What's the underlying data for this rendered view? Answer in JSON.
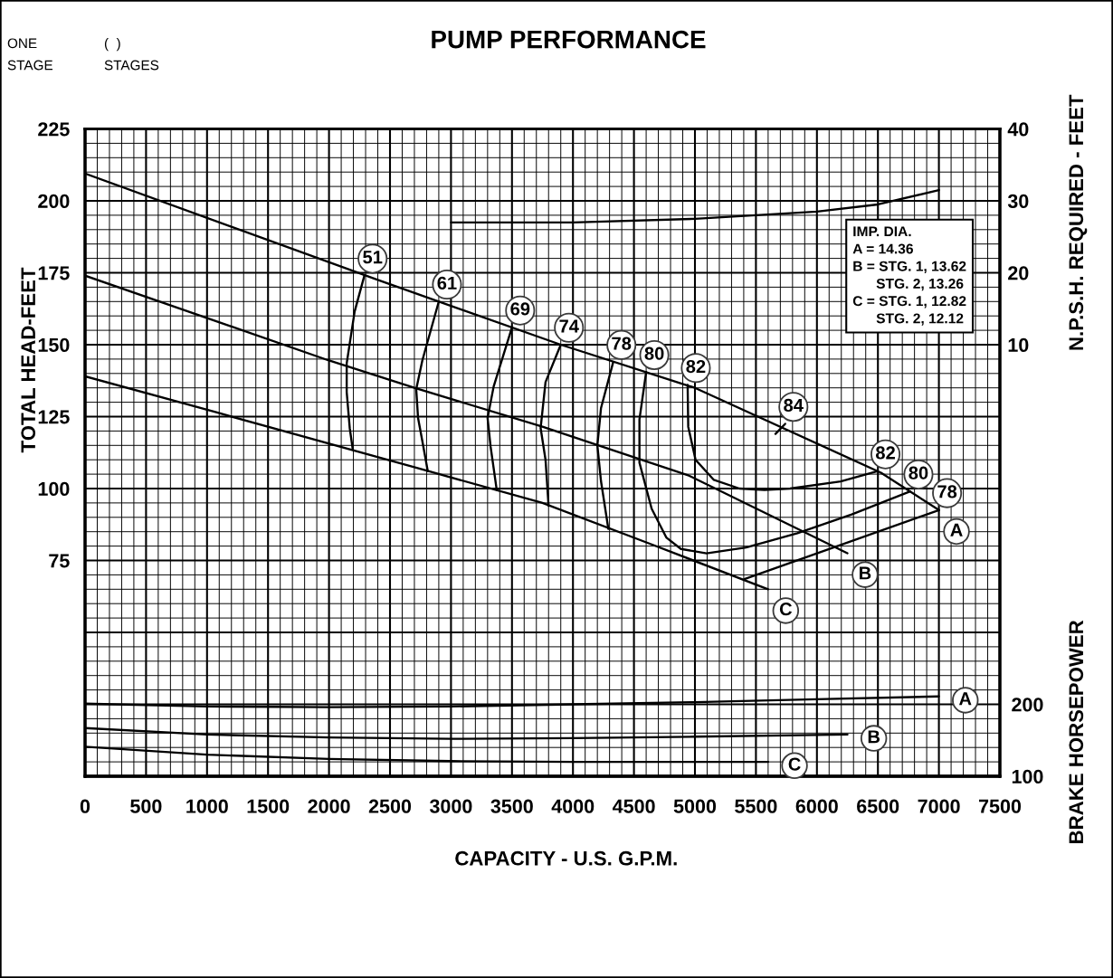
{
  "chart_data": {
    "type": "line",
    "title": "PUMP PERFORMANCE",
    "xlabel": "CAPACITY - U.S. G.P.M.",
    "ylabel": "TOTAL HEAD-FEET",
    "y2label": "N.P.S.H. REQUIRED - FEET",
    "y3label": "BRAKE HORSEPOWER",
    "annotations": [
      "ONE\nSTAGE",
      "(  )\nSTAGES",
      "IMP. DIA.\nA = 14.36\nB = STG. 1, 13.62\n      STG. 2, 13.26\nC = STG. 1, 12.82\n      STG. 2, 12.12"
    ],
    "xlim": [
      0,
      7500
    ],
    "xticks": [
      0,
      {
        "value": 100,
        "label": null
      },
      {
        "value": 200,
        "label": null
      },
      {
        "value": 300,
        "label": null
      },
      {
        "value": 400,
        "label": null
      },
      500,
      {
        "value": 600,
        "label": null
      },
      {
        "value": 700,
        "label": null
      },
      {
        "value": 800,
        "label": null
      },
      {
        "value": 900,
        "label": null
      },
      1000,
      {
        "value": 1100,
        "label": null
      },
      {
        "value": 1200,
        "label": null
      },
      {
        "value": 1300,
        "label": null
      },
      {
        "value": 1400,
        "label": null
      },
      1500,
      {
        "value": 1600,
        "label": null
      },
      {
        "value": 1700,
        "label": null
      },
      {
        "value": 1800,
        "label": null
      },
      {
        "value": 1900,
        "label": null
      },
      2000,
      {
        "value": 2100,
        "label": null
      },
      {
        "value": 2200,
        "label": null
      },
      {
        "value": 2300,
        "label": null
      },
      {
        "value": 2400,
        "label": null
      },
      2500,
      {
        "value": 2600,
        "label": null
      },
      {
        "value": 2700,
        "label": null
      },
      {
        "value": 2800,
        "label": null
      },
      {
        "value": 2900,
        "label": null
      },
      3000,
      {
        "value": 3100,
        "label": null
      },
      {
        "value": 3200,
        "label": null
      },
      {
        "value": 3300,
        "label": null
      },
      {
        "value": 3400,
        "label": null
      },
      3500,
      {
        "value": 3600,
        "label": null
      },
      {
        "value": 3700,
        "label": null
      },
      {
        "value": 3800,
        "label": null
      },
      {
        "value": 3900,
        "label": null
      },
      4000,
      {
        "value": 4100,
        "label": null
      },
      {
        "value": 4200,
        "label": null
      },
      {
        "value": 4300,
        "label": null
      },
      {
        "value": 4400,
        "label": null
      },
      4500,
      {
        "value": 4600,
        "label": null
      },
      {
        "value": 4700,
        "label": null
      },
      {
        "value": 4800,
        "label": null
      },
      {
        "value": 4900,
        "label": null
      },
      5000,
      {
        "value": 5100,
        "label": null
      },
      {
        "value": 5200,
        "label": null
      },
      {
        "value": 5300,
        "label": null
      },
      {
        "value": 5400,
        "label": null
      },
      5500,
      {
        "value": 5600,
        "label": null
      },
      {
        "value": 5700,
        "label": null
      },
      {
        "value": 5800,
        "label": null
      },
      {
        "value": 5900,
        "label": null
      },
      6000,
      {
        "value": 6100,
        "label": null
      },
      {
        "value": 6200,
        "label": null
      },
      {
        "value": 6300,
        "label": null
      },
      {
        "value": 6400,
        "label": null
      },
      6500,
      {
        "value": 6600,
        "label": null
      },
      {
        "value": 6700,
        "label": null
      },
      {
        "value": 6800,
        "label": null
      },
      {
        "value": 6900,
        "label": null
      },
      7000,
      {
        "value": 7100,
        "label": null
      },
      {
        "value": 7200,
        "label": null
      },
      {
        "value": 7300,
        "label": null
      },
      {
        "value": 7400,
        "label": null
      },
      7500
    ],
    "ylim": [
      0,
      225
    ],
    "yticks": [
      {
        "value": 0,
        "label": null
      },
      {
        "value": 5,
        "label": null
      },
      {
        "value": 10,
        "label": null
      },
      {
        "value": 15,
        "label": null
      },
      {
        "value": 20,
        "label": null
      },
      {
        "value": 25,
        "label": null
      },
      {
        "value": 30,
        "label": null
      },
      {
        "value": 35,
        "label": null
      },
      {
        "value": 40,
        "label": null
      },
      {
        "value": 45,
        "label": null
      },
      {
        "value": 50,
        "label": null
      },
      {
        "value": 55,
        "label": null
      },
      {
        "value": 60,
        "label": null
      },
      {
        "value": 65,
        "label": null
      },
      {
        "value": 70,
        "label": null
      },
      75,
      {
        "value": 80,
        "label": null
      },
      {
        "value": 85,
        "label": null
      },
      {
        "value": 90,
        "label": null
      },
      {
        "value": 95,
        "label": null
      },
      100,
      {
        "value": 105,
        "label": null
      },
      {
        "value": 110,
        "label": null
      },
      {
        "value": 115,
        "label": null
      },
      {
        "value": 120,
        "label": null
      },
      125,
      {
        "value": 130,
        "label": null
      },
      {
        "value": 135,
        "label": null
      },
      {
        "value": 140,
        "label": null
      },
      {
        "value": 145,
        "label": null
      },
      150,
      {
        "value": 155,
        "label": null
      },
      {
        "value": 160,
        "label": null
      },
      {
        "value": 165,
        "label": null
      },
      {
        "value": 170,
        "label": null
      },
      175,
      {
        "value": 180,
        "label": null
      },
      {
        "value": 185,
        "label": null
      },
      {
        "value": 190,
        "label": null
      },
      {
        "value": 195,
        "label": null
      },
      200,
      {
        "value": 205,
        "label": null
      },
      {
        "value": 210,
        "label": null
      },
      {
        "value": 215,
        "label": null
      },
      {
        "value": 220,
        "label": null
      },
      225
    ],
    "y2lim": [
      -50,
      40
    ],
    "y2ticks": [
      10,
      20,
      30,
      40
    ],
    "y3lim": [
      100,
      1000
    ],
    "y3ticks": [
      100,
      200
    ],
    "grid": true,
    "line_style": "solid",
    "series": [
      {
        "name": "A",
        "color": "#000000",
        "x": [
          0,
          2400,
          3900,
          5000,
          6525,
          7000
        ],
        "values": [
          209.5,
          172.5,
          150,
          135,
          105.5,
          92.5
        ]
      },
      {
        "name": "B",
        "color": "#000000",
        "x": [
          0,
          2000,
          2700,
          3750,
          4950,
          6250
        ],
        "values": [
          174,
          144.5,
          135,
          121.5,
          104.5,
          77.5
        ]
      },
      {
        "name": "C",
        "color": "#000000",
        "x": [
          0,
          1075,
          2820,
          3750,
          4650,
          5600
        ],
        "values": [
          139,
          126.5,
          106,
          95,
          80.5,
          65
        ]
      },
      {
        "name": "51",
        "color": "#000000",
        "x": [
          2195,
          2170,
          2145,
          2145,
          2210,
          2290
        ],
        "values": [
          113.5,
          121,
          133.5,
          143.5,
          161.5,
          174
        ]
      },
      {
        "name": "61",
        "color": "#000000",
        "x": [
          2810,
          2765,
          2730,
          2715,
          2765,
          2900
        ],
        "values": [
          106,
          116.5,
          124.5,
          134.5,
          144.5,
          165
        ]
      },
      {
        "name": "69",
        "color": "#000000",
        "x": [
          3375,
          3325,
          3300,
          3350,
          3500
        ],
        "values": [
          99.5,
          114.5,
          124.5,
          135.5,
          156
        ]
      },
      {
        "name": "74",
        "color": "#000000",
        "x": [
          3800,
          3775,
          3735,
          3775,
          3900
        ],
        "values": [
          94,
          110,
          121,
          137,
          150
        ]
      },
      {
        "name": "78",
        "color": "#000000",
        "x": [
          4290,
          4230,
          4200,
          4230,
          4330
        ],
        "values": [
          86,
          102.5,
          115,
          128,
          144
        ]
      },
      {
        "name": "80",
        "color": "#000000",
        "x": [
          4600,
          4545,
          4545,
          4645,
          4765,
          4885,
          5095,
          5420,
          5840,
          6285,
          6765
        ],
        "values": [
          140.5,
          124,
          109,
          93,
          83,
          79,
          77.5,
          79.5,
          84.5,
          91,
          99
        ]
      },
      {
        "name": "82",
        "color": "#000000",
        "x": [
          4940,
          4945,
          5005,
          5155,
          5365,
          5570,
          5780,
          6195,
          6495
        ],
        "values": [
          136,
          121.5,
          110,
          103,
          100,
          99.5,
          100,
          102.5,
          106
        ]
      },
      {
        "name": "84",
        "color": "#000000",
        "x": [
          5660,
          5740
        ],
        "values": [
          119,
          122.5
        ]
      },
      {
        "name": "78",
        "color": "#000000",
        "x": [
          5405,
          7000
        ],
        "values": [
          68.5,
          92.5
        ]
      },
      {
        "axis": "y2",
        "color": "#000000",
        "x": [
          3000,
          4000,
          5000,
          5500,
          6000,
          6500,
          7000
        ],
        "values": [
          27,
          27,
          27.5,
          28,
          28.5,
          29.5,
          31.5
        ]
      },
      {
        "name": "A",
        "axis": "y3",
        "color": "#000000",
        "x": [
          0,
          1000,
          2000,
          3000,
          4000,
          5000,
          6000,
          7000
        ],
        "values": [
          201,
          197,
          196,
          197,
          200,
          203,
          207,
          211
        ]
      },
      {
        "name": "B",
        "axis": "y3",
        "color": "#000000",
        "x": [
          0,
          1000,
          2000,
          3000,
          4000,
          5000,
          6250
        ],
        "values": [
          167,
          158,
          154,
          152,
          153,
          155,
          158
        ]
      },
      {
        "name": "C",
        "axis": "y3",
        "color": "#000000",
        "x": [
          0,
          1000,
          2000,
          3000,
          4000,
          5000,
          5600
        ],
        "values": [
          141,
          130,
          124,
          121,
          120,
          120,
          120
        ]
      }
    ]
  }
}
